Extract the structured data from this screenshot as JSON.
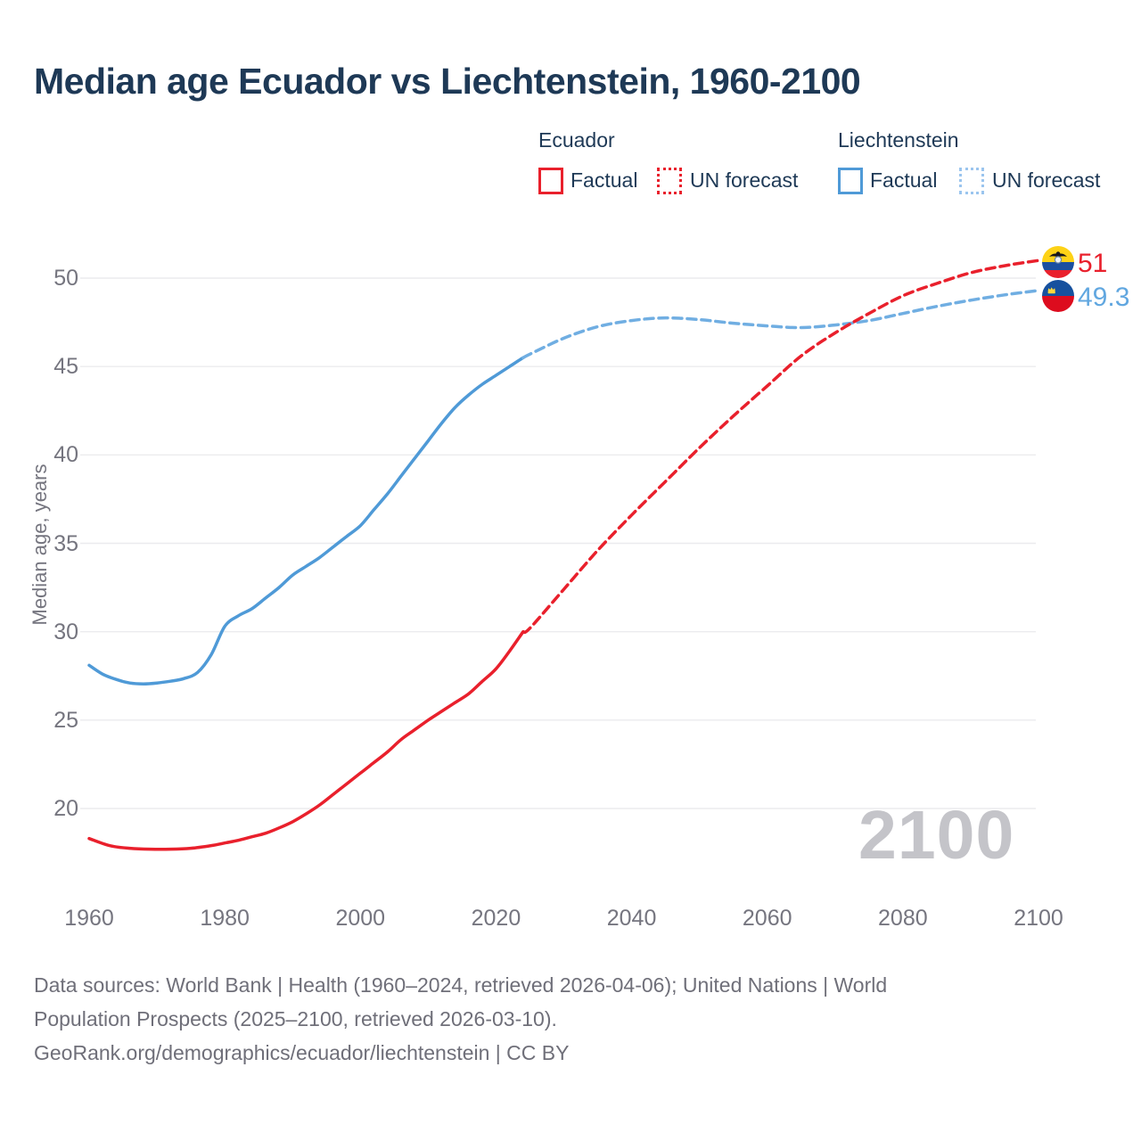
{
  "page": {
    "title": "Median age Ecuador vs Liechtenstein, 1960-2100"
  },
  "legend": {
    "groups": [
      {
        "name": "Ecuador",
        "color": "#e9202c",
        "forecast_color": "#e9202c",
        "items": [
          {
            "label": "Factual"
          },
          {
            "label": "UN forecast"
          }
        ]
      },
      {
        "name": "Liechtenstein",
        "color": "#4f9ad7",
        "forecast_color": "#9bc5ee",
        "items": [
          {
            "label": "Factual"
          },
          {
            "label": "UN forecast"
          }
        ]
      }
    ]
  },
  "watermark": "2100",
  "end_labels": [
    {
      "text": "51",
      "color": "#e9202c",
      "flag": "ecuador-flag"
    },
    {
      "text": "49.3",
      "color": "#61a7e0",
      "flag": "liechtenstein-flag"
    }
  ],
  "footer": {
    "lines": [
      "Data sources: World Bank | Health (1960–2024, retrieved 2026-04-06); United Nations | World",
      "Population Prospects (2025–2100, retrieved 2026-03-10).",
      "GeoRank.org/demographics/ecuador/liechtenstein | CC BY"
    ]
  },
  "chart_data": {
    "type": "line",
    "title": "Median age Ecuador vs Liechtenstein, 1960-2100",
    "xlabel": "",
    "ylabel": "Median age, years",
    "x_domain": [
      1960,
      2100
    ],
    "ylim": [
      17,
      52
    ],
    "x_ticks": [
      1960,
      1980,
      2000,
      2020,
      2040,
      2060,
      2080,
      2100
    ],
    "y_ticks": [
      20,
      25,
      30,
      35,
      40,
      45,
      50
    ],
    "grid": "horizontal",
    "legend_position": "top-right",
    "series": [
      {
        "id": "liechtenstein-factual",
        "name": "Liechtenstein — Factual",
        "color": "#4f9ad7",
        "dash": "solid",
        "points": [
          [
            1960,
            28.1
          ],
          [
            1962,
            27.6
          ],
          [
            1964,
            27.3
          ],
          [
            1966,
            27.1
          ],
          [
            1968,
            27.05
          ],
          [
            1970,
            27.1
          ],
          [
            1972,
            27.2
          ],
          [
            1974,
            27.35
          ],
          [
            1976,
            27.7
          ],
          [
            1978,
            28.7
          ],
          [
            1980,
            30.3
          ],
          [
            1982,
            30.9
          ],
          [
            1984,
            31.3
          ],
          [
            1986,
            31.9
          ],
          [
            1988,
            32.5
          ],
          [
            1990,
            33.2
          ],
          [
            1992,
            33.7
          ],
          [
            1994,
            34.2
          ],
          [
            1996,
            34.8
          ],
          [
            1998,
            35.4
          ],
          [
            2000,
            36.0
          ],
          [
            2002,
            36.9
          ],
          [
            2004,
            37.8
          ],
          [
            2006,
            38.8
          ],
          [
            2008,
            39.8
          ],
          [
            2010,
            40.8
          ],
          [
            2012,
            41.8
          ],
          [
            2014,
            42.7
          ],
          [
            2016,
            43.4
          ],
          [
            2018,
            44.0
          ],
          [
            2020,
            44.5
          ],
          [
            2022,
            45.0
          ],
          [
            2024,
            45.5
          ]
        ]
      },
      {
        "id": "liechtenstein-forecast",
        "name": "Liechtenstein — UN forecast",
        "color": "#70aee2",
        "dash": "dashed",
        "points": [
          [
            2024,
            45.5
          ],
          [
            2025,
            45.7
          ],
          [
            2030,
            46.6
          ],
          [
            2035,
            47.25
          ],
          [
            2040,
            47.6
          ],
          [
            2045,
            47.75
          ],
          [
            2050,
            47.65
          ],
          [
            2055,
            47.45
          ],
          [
            2060,
            47.3
          ],
          [
            2065,
            47.2
          ],
          [
            2070,
            47.35
          ],
          [
            2075,
            47.6
          ],
          [
            2080,
            48.0
          ],
          [
            2085,
            48.4
          ],
          [
            2090,
            48.75
          ],
          [
            2095,
            49.05
          ],
          [
            2100,
            49.3
          ]
        ]
      },
      {
        "id": "ecuador-factual",
        "name": "Ecuador — Factual",
        "color": "#e9202c",
        "dash": "solid",
        "points": [
          [
            1960,
            18.3
          ],
          [
            1963,
            17.9
          ],
          [
            1966,
            17.75
          ],
          [
            1969,
            17.7
          ],
          [
            1972,
            17.7
          ],
          [
            1975,
            17.75
          ],
          [
            1978,
            17.9
          ],
          [
            1980,
            18.05
          ],
          [
            1982,
            18.2
          ],
          [
            1984,
            18.4
          ],
          [
            1986,
            18.6
          ],
          [
            1988,
            18.9
          ],
          [
            1990,
            19.25
          ],
          [
            1992,
            19.7
          ],
          [
            1994,
            20.2
          ],
          [
            1996,
            20.8
          ],
          [
            1998,
            21.4
          ],
          [
            2000,
            22.0
          ],
          [
            2002,
            22.6
          ],
          [
            2004,
            23.2
          ],
          [
            2006,
            23.9
          ],
          [
            2008,
            24.45
          ],
          [
            2010,
            25.0
          ],
          [
            2012,
            25.5
          ],
          [
            2014,
            26.0
          ],
          [
            2016,
            26.5
          ],
          [
            2018,
            27.2
          ],
          [
            2020,
            27.9
          ],
          [
            2022,
            28.9
          ],
          [
            2024,
            30.0
          ]
        ]
      },
      {
        "id": "ecuador-forecast",
        "name": "Ecuador — UN forecast",
        "color": "#e9202c",
        "dash": "dashed",
        "points": [
          [
            2024,
            30.0
          ],
          [
            2025,
            30.2
          ],
          [
            2030,
            32.4
          ],
          [
            2035,
            34.6
          ],
          [
            2040,
            36.6
          ],
          [
            2045,
            38.5
          ],
          [
            2050,
            40.4
          ],
          [
            2055,
            42.2
          ],
          [
            2060,
            43.9
          ],
          [
            2065,
            45.6
          ],
          [
            2070,
            46.9
          ],
          [
            2075,
            48.0
          ],
          [
            2080,
            49.0
          ],
          [
            2085,
            49.7
          ],
          [
            2090,
            50.3
          ],
          [
            2095,
            50.7
          ],
          [
            2100,
            51.0
          ]
        ]
      }
    ],
    "end_labels": [
      {
        "series": "ecuador-forecast",
        "text": "51"
      },
      {
        "series": "liechtenstein-forecast",
        "text": "49.3"
      }
    ]
  }
}
